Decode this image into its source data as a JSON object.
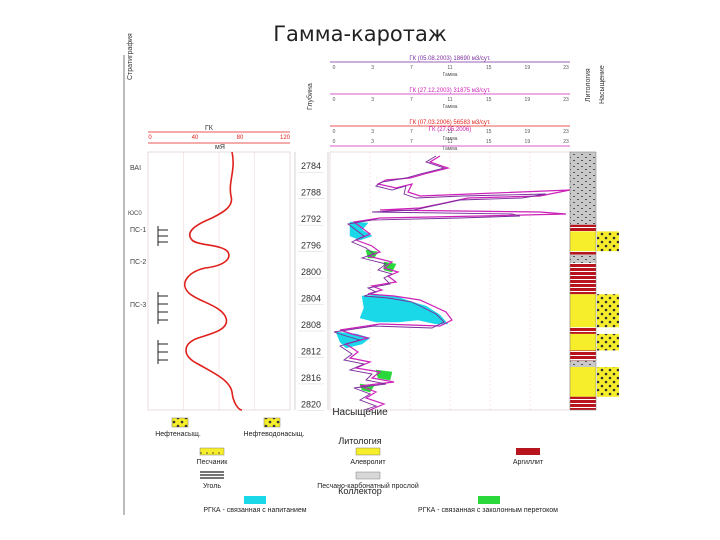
{
  "slide": {
    "title": "Гамма-каротаж"
  },
  "log": {
    "gr_track": {
      "ticks": [
        "0",
        "40",
        "80",
        "120"
      ],
      "unit": "мЯ"
    },
    "depth_track": {
      "labels": [
        "2784",
        "2788",
        "2792",
        "2796",
        "2800",
        "2804",
        "2808",
        "2812",
        "2816",
        "2820"
      ],
      "range": [
        2782,
        2821
      ]
    },
    "ngk_track": {
      "scale_ticks": [
        "0",
        "3",
        "7",
        "11",
        "15",
        "19",
        "23"
      ],
      "header_curves": [
        "ГК (05.08.2003) 18690 м3/сут.",
        "ГК (27.12.2003) 31875 м3/сут.",
        "ГК (07.03.2006) 56583 м3/сут.",
        "ГК (27.05.2006)"
      ],
      "gamma_label": "Гамма"
    },
    "left_layer_labels": [
      "ВАI",
      "ПС-1",
      "ПС-2",
      "ПС-3"
    ],
    "lithology_column": [
      {
        "top": 2782,
        "base": 2793,
        "type": "silty"
      },
      {
        "top": 2793,
        "base": 2794,
        "type": "argillite"
      },
      {
        "top": 2794,
        "base": 2797,
        "type": "sandstone_oil"
      },
      {
        "top": 2797,
        "base": 2797.5,
        "type": "argillite"
      },
      {
        "top": 2797.5,
        "base": 2798.8,
        "type": "silty"
      },
      {
        "top": 2798.8,
        "base": 2803.5,
        "type": "argillite"
      },
      {
        "top": 2803.5,
        "base": 2808.5,
        "type": "sandstone_oil"
      },
      {
        "top": 2808.5,
        "base": 2809.5,
        "type": "argillite"
      },
      {
        "top": 2809.5,
        "base": 2812,
        "type": "sandstone_oil"
      },
      {
        "top": 2812,
        "base": 2813.5,
        "type": "argillite"
      },
      {
        "top": 2813.5,
        "base": 2814.5,
        "type": "silty"
      },
      {
        "top": 2814.5,
        "base": 2819,
        "type": "sandstone_oil"
      },
      {
        "top": 2819,
        "base": 2821,
        "type": "argillite"
      }
    ]
  },
  "legend": {
    "saturation_title": "Насыщение",
    "oil_sat": "Нефтенасыщ.",
    "oil_water_sat": "Нефтеводонасыщ.",
    "lithology_title": "Литология",
    "sandstone": "Песчаник",
    "siltstone": "Алевролит",
    "argillite": "Аргиллит",
    "coal": "Уголь",
    "sandy_carbonate": "Песчано-карбонатный прослой",
    "collector_title": "Коллектор",
    "cyan_zone": "РГКА - связанная с напитанием",
    "green_zone": "РГКА - связанная с заколонным перетоком"
  },
  "colors": {
    "gr_curve": "#e0201c",
    "grid": "#f0a8a8",
    "sandstone": "#f6ee2a",
    "argillite": "#b8141e",
    "cyan": "#1ad8e8",
    "green": "#2bd83c",
    "curve_magenta": "#cc20b8",
    "curve_purple": "#7a2c9c"
  }
}
